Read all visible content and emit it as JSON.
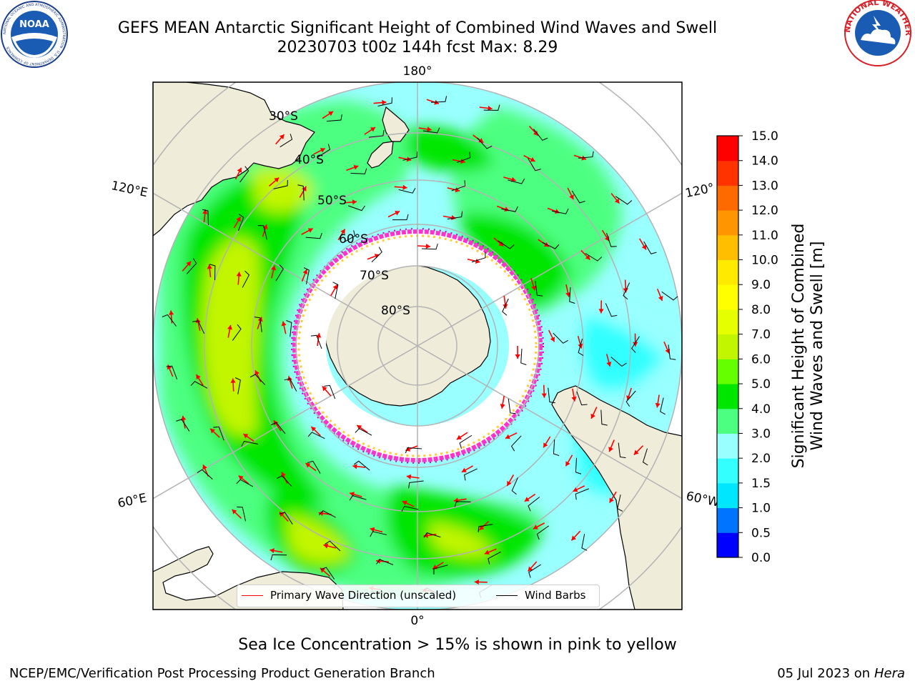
{
  "title": {
    "line1": "GEFS MEAN Antarctic Significant Height of Combined Wind Waves and Swell",
    "line2": "20230703 t00z 144h fcst   Max: 8.29"
  },
  "logos": {
    "left": {
      "name": "noaa-logo",
      "text": "NOAA",
      "ring_text": "NATIONAL OCEANIC AND ATMOSPHERIC ADMINISTRATION · U.S. DEPARTMENT OF COMMERCE"
    },
    "right": {
      "name": "nws-logo",
      "ring_text": "NATIONAL WEATHER SERVICE"
    }
  },
  "map": {
    "projection": "south-polar-stereographic",
    "lat_labels": [
      "30°S",
      "40°S",
      "50°S",
      "60°S",
      "70°S",
      "80°S"
    ],
    "lon_labels": {
      "top": "180°",
      "bottom": "0°",
      "upper_left": "120°E",
      "upper_right": "120°",
      "lower_left": "60°E",
      "lower_right": "60°W"
    },
    "colors": {
      "land": "#efedda",
      "ice": "#ffffff",
      "grid": "#b3b3b3",
      "wave_arrow": "#ff0000",
      "wind_barb": "#000000"
    }
  },
  "legend": {
    "wave_label": "Primary Wave Direction (unscaled)",
    "wind_label": "Wind Barbs"
  },
  "colorbar": {
    "label_line1": "Significant Height of Combined",
    "label_line2": "Wind Waves and Swell [m]",
    "ticks": [
      "0.0",
      "0.5",
      "1.0",
      "1.5",
      "2.0",
      "3.0",
      "4.0",
      "5.0",
      "6.0",
      "7.0",
      "8.0",
      "9.0",
      "10.0",
      "11.0",
      "12.0",
      "13.0",
      "14.0",
      "15.0"
    ],
    "colors": [
      "#0000ff",
      "#0073ff",
      "#00e6ff",
      "#33ffff",
      "#99ffff",
      "#4dff80",
      "#00e600",
      "#66ff00",
      "#c2f500",
      "#e6ff00",
      "#ffff00",
      "#ffea00",
      "#ffbf00",
      "#ff9500",
      "#ff6a00",
      "#ff3300",
      "#ff0000"
    ]
  },
  "caption": "Sea Ice Concentration > 15% is shown in pink to yellow",
  "credits": {
    "left": "NCEP/EMC/Verification Post Processing Product Generation Branch",
    "right_date": "05 Jul 2023 on ",
    "right_machine": "Hera"
  }
}
